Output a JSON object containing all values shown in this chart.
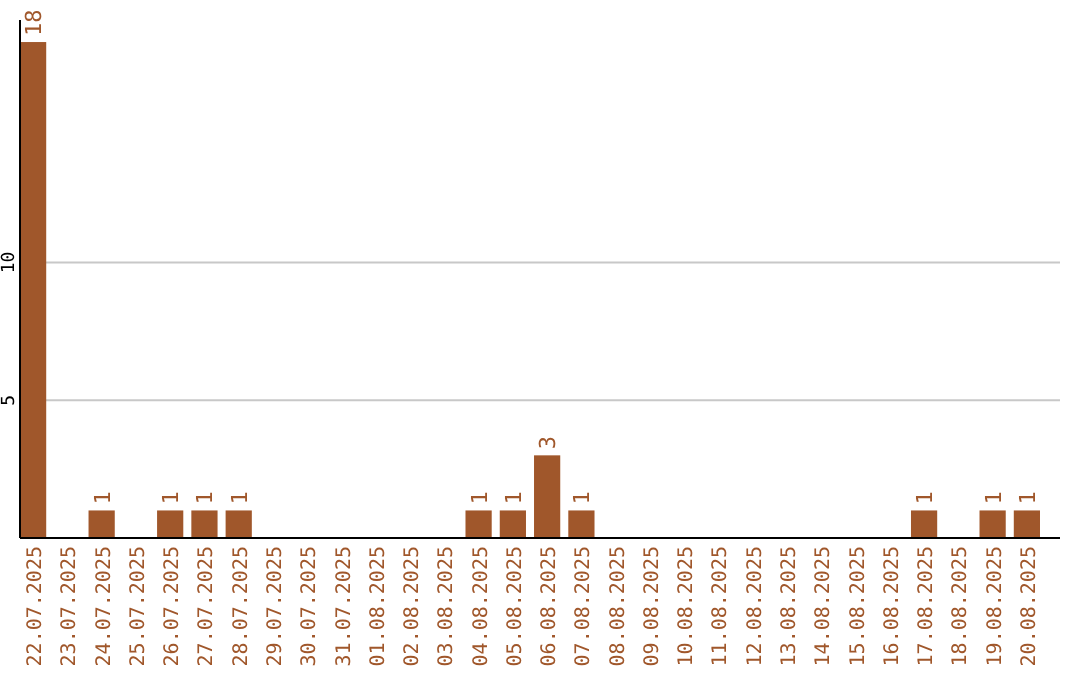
{
  "chart_data": {
    "type": "bar",
    "categories": [
      "22.07.2025",
      "23.07.2025",
      "24.07.2025",
      "25.07.2025",
      "26.07.2025",
      "27.07.2025",
      "28.07.2025",
      "29.07.2025",
      "30.07.2025",
      "31.07.2025",
      "01.08.2025",
      "02.08.2025",
      "03.08.2025",
      "04.08.2025",
      "05.08.2025",
      "06.08.2025",
      "07.08.2025",
      "08.08.2025",
      "09.08.2025",
      "10.08.2025",
      "11.08.2025",
      "12.08.2025",
      "13.08.2025",
      "14.08.2025",
      "15.08.2025",
      "16.08.2025",
      "17.08.2025",
      "18.08.2025",
      "19.08.2025",
      "20.08.2025"
    ],
    "values": [
      18,
      0,
      1,
      0,
      1,
      1,
      1,
      0,
      0,
      0,
      0,
      0,
      0,
      1,
      1,
      3,
      1,
      0,
      0,
      0,
      0,
      0,
      0,
      0,
      0,
      0,
      1,
      0,
      1,
      1
    ],
    "value_labels": [
      "18",
      null,
      "1",
      null,
      "1",
      "1",
      "1",
      null,
      null,
      null,
      null,
      null,
      null,
      "1",
      "1",
      "3",
      "1",
      null,
      null,
      null,
      null,
      null,
      null,
      null,
      null,
      null,
      "1",
      null,
      "1",
      "1"
    ],
    "color": "#a0572b",
    "ylim": [
      0,
      18.8
    ],
    "yticks": [
      5,
      10
    ],
    "grid": "y"
  }
}
